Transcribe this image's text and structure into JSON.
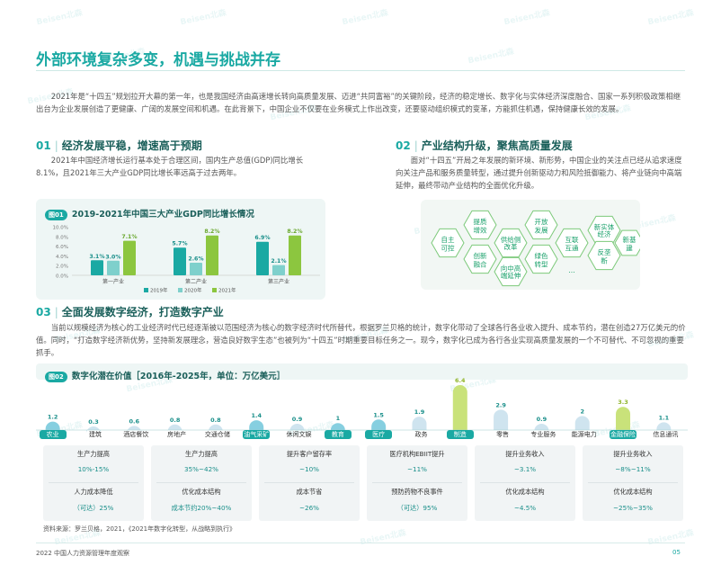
{
  "page": {
    "main_title": "外部环境复杂多变，机遇与挑战并存",
    "intro": "2021年是“十四五”规划拉开大幕的第一年，也是我国经济由高速增长转向高质量发展、迈进“共同富裕”的关键阶段，经济的稳定增长、数字化与实体经济深度融合、国家一系列积极政策相继出台为企业发展创造了更健康、广阔的发展空间和机遇。在此背景下，中国企业不仅要在业务模式上作出改变，还要驱动组织模式的变革，方能抓住机遇，保持健康长效的发展。",
    "footer_left": "2022 中国人力资源管理年度观察",
    "page_number": "05",
    "source": "资料来源：罗兰贝格，2021，《2021年数字化转型，从战略到执行》",
    "watermark": "Beisen北森"
  },
  "section1": {
    "num": "01",
    "title": "经济发展平稳，增速高于预期",
    "text": "2021年中国经济增长运行基本处于合理区间，国内生产总值(GDP)同比增长8.1%，且2021年三大产业GDP同比增长率远高于过去两年。"
  },
  "section2": {
    "num": "02",
    "title": "产业结构升级，聚焦高质量发展",
    "text": "面对“十四五”开局之年发展的新环境、新形势，中国企业的关注点已经从追求速度向关注产品和服务质量转型，通过提升创新驱动力和风险抵御能力、将产业链向中高端延伸，最终带动产业结构的全面优化升级。",
    "hexes": [
      "自主可控",
      "提质增效",
      "创新融合",
      "供给侧改革",
      "向中高端延伸",
      "开放发展",
      "绿色转型",
      "互联互通",
      "…",
      "新实体经济",
      "反垄断",
      "新基建"
    ]
  },
  "section3": {
    "num": "03",
    "title": "全面发展数字经济，打造数字产业",
    "text": "当前以规模经济为核心的工业经济时代已经逐渐被以范围经济为核心的数字经济时代所替代，根据罗兰贝格的统计，数字化带动了全球各行各业收入提升、成本节约，潜在创造27万亿美元的价值。同时，“打造数字经济新优势，坚持新发展理念，营造良好数字生态”也被列为“十四五”时期重要目标任务之一。现今，数字化已成为各行各业实现高质量发展的一个不可替代、不可忽视的重要抓手。"
  },
  "chart1": {
    "badge": "图01",
    "title": "2019-2021年中国三大产业GDP同比增长情况",
    "chart_data": {
      "type": "bar",
      "categories": [
        "第一产业",
        "第二产业",
        "第三产业"
      ],
      "series": [
        {
          "name": "2019年",
          "values": [
            3.1,
            5.7,
            6.9
          ]
        },
        {
          "name": "2020年",
          "values": [
            3.0,
            2.6,
            2.1
          ]
        },
        {
          "name": "2021年",
          "values": [
            7.1,
            8.2,
            8.2
          ]
        }
      ],
      "value_labels": [
        [
          "3.1%",
          "5.7%",
          "6.9%"
        ],
        [
          "3.0%",
          "2.6%",
          "2.1%"
        ],
        [
          "7.1%",
          "8.2%",
          "8.2%"
        ]
      ],
      "yticks": [
        "10.0%",
        "8.0%",
        "6.0%",
        "4.0%",
        "2.0%",
        "0.0%"
      ],
      "ylim": [
        0,
        10
      ],
      "colors": [
        "#1aa9a3",
        "#7ed0cc",
        "#8cc63f"
      ],
      "legend_position": "bottom"
    }
  },
  "chart2": {
    "badge": "图02",
    "title": "数字化潜在价值［2016年-2025年，单位：万亿美元］",
    "chart_data": {
      "type": "bar",
      "categories": [
        "农业",
        "建筑",
        "酒店餐饮",
        "房地产",
        "交通仓储",
        "油气采矿",
        "休闲文娱",
        "教育",
        "医疗",
        "政务",
        "制造",
        "零售",
        "专业服务",
        "能源电力",
        "金融保险",
        "信息通讯"
      ],
      "values": [
        1.2,
        0.3,
        0.6,
        0.8,
        0.8,
        1.4,
        0.9,
        1.0,
        1.5,
        1.9,
        6.4,
        2.9,
        0.9,
        2.0,
        3.3,
        1.1
      ],
      "highlighted": [
        "农业",
        "油气采矿",
        "教育",
        "医疗",
        "制造",
        "金融保险"
      ]
    }
  },
  "cards": [
    {
      "r1_label": "生产力提高",
      "r1_value": "10%-15%",
      "r2_label": "人力成本降低",
      "r2_value": "（可达）25%"
    },
    {
      "r1_label": "生产力提高",
      "r1_value": "35%~42%",
      "r2_label": "优化成本结构",
      "r2_value": "成本节约20%~40%"
    },
    {
      "r1_label": "提升客户留存率",
      "r1_value": "~10%",
      "r2_label": "成本节省",
      "r2_value": "~26%"
    },
    {
      "r1_label": "医疗机构EBIIT提升",
      "r1_value": "~11%",
      "r2_label": "预防药物不良事件",
      "r2_value": "（可达）95%"
    },
    {
      "r1_label": "提升业务收入",
      "r1_value": "~3.1%",
      "r2_label": "优化成本结构",
      "r2_value": "~4.5%"
    },
    {
      "r1_label": "提升业务收入",
      "r1_value": "~8%~11%",
      "r2_label": "优化成本结构",
      "r2_value": "~25%~35%"
    }
  ]
}
